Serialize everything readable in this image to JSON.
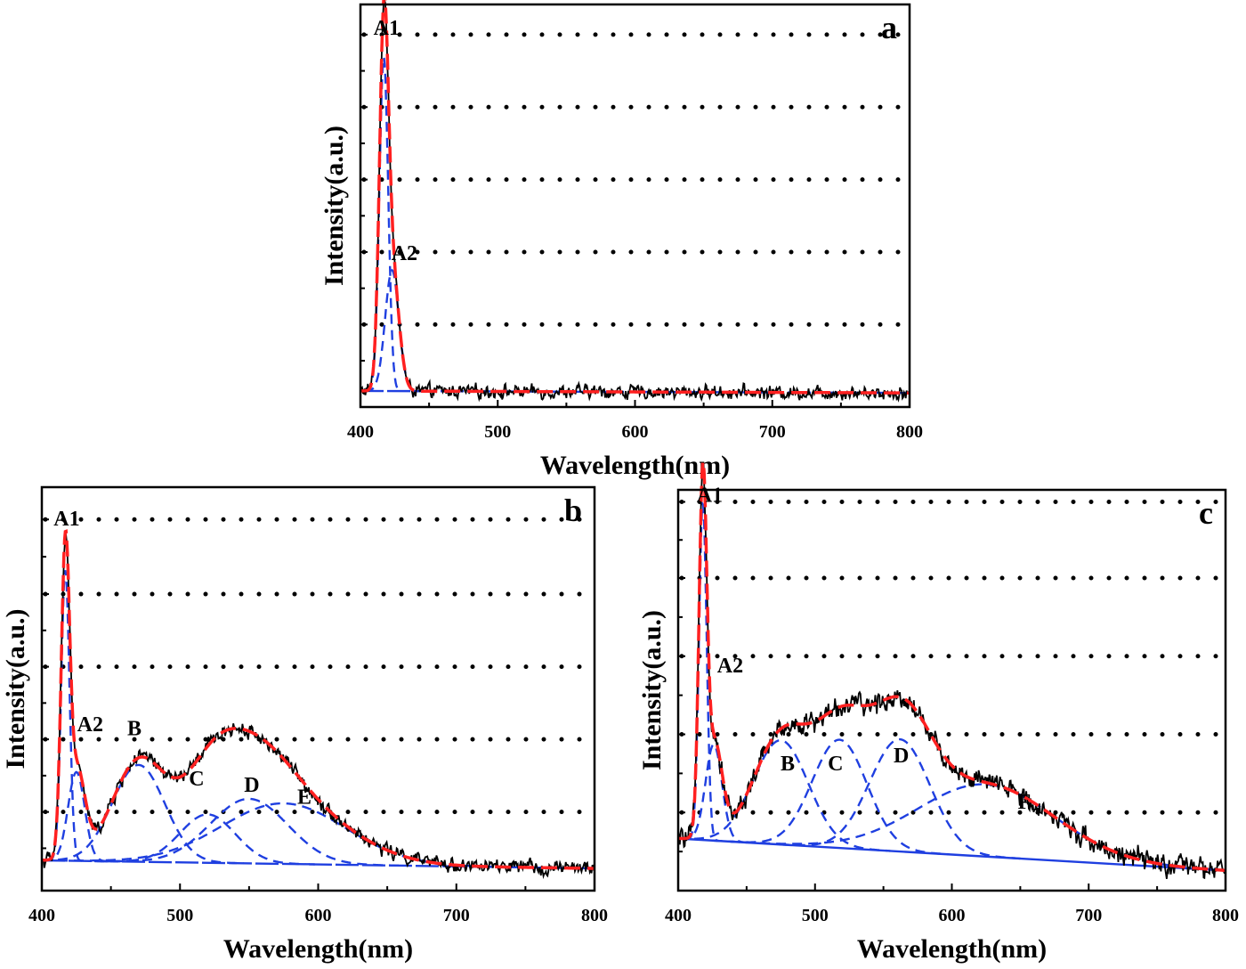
{
  "colors": {
    "measured": "#000000",
    "fit": "#ff2020",
    "components": "#1f3fe0",
    "grid": "#000000"
  },
  "chart_data": [
    {
      "id": "a",
      "type": "line",
      "panel_label": "a",
      "xlabel": "Wavelength(nm)",
      "ylabel": "Intensity(a.u.)",
      "xlim": [
        400,
        800
      ],
      "ylim": [
        0,
        1
      ],
      "xticks": [
        400,
        500,
        600,
        700,
        800
      ],
      "grid_levels": [
        0.205,
        0.385,
        0.565,
        0.745,
        0.925
      ],
      "legend": "none",
      "baseline": [
        0.04,
        0.035
      ],
      "peaks": [
        {
          "label": "A1",
          "center": 417,
          "height": 0.83,
          "width": 3.2
        },
        {
          "label": "A2",
          "center": 423,
          "height": 0.3,
          "width": 5
        }
      ],
      "peak_label_pos": [
        {
          "label": "A1",
          "x": 419,
          "y": 0.925
        },
        {
          "label": "A2",
          "x": 432,
          "y": 0.365
        }
      ],
      "noise": 0.012
    },
    {
      "id": "b",
      "type": "line",
      "panel_label": "b",
      "xlabel": "Wavelength(nm)",
      "ylabel": "Intensity(a.u.)",
      "xlim": [
        400,
        800
      ],
      "ylim": [
        0,
        1
      ],
      "xticks": [
        400,
        500,
        600,
        700,
        800
      ],
      "grid_levels": [
        0.195,
        0.375,
        0.555,
        0.735,
        0.92
      ],
      "legend": "none",
      "baseline": [
        0.075,
        0.055
      ],
      "peaks": [
        {
          "label": "A1",
          "center": 417,
          "height": 0.72,
          "width": 3
        },
        {
          "label": "A2",
          "center": 425,
          "height": 0.22,
          "width": 6
        },
        {
          "label": "B",
          "center": 470,
          "height": 0.24,
          "width": 19
        },
        {
          "label": "C",
          "center": 520,
          "height": 0.12,
          "width": 20
        },
        {
          "label": "D",
          "center": 550,
          "height": 0.16,
          "width": 28
        },
        {
          "label": "E",
          "center": 575,
          "height": 0.15,
          "width": 45
        }
      ],
      "peak_label_pos": [
        {
          "label": "A1",
          "x": 418,
          "y": 0.905
        },
        {
          "label": "A2",
          "x": 435,
          "y": 0.395
        },
        {
          "label": "B",
          "x": 467,
          "y": 0.385
        },
        {
          "label": "C",
          "x": 512,
          "y": 0.26
        },
        {
          "label": "D",
          "x": 552,
          "y": 0.245
        },
        {
          "label": "E",
          "x": 590,
          "y": 0.215
        }
      ],
      "noise": 0.013
    },
    {
      "id": "c",
      "type": "line",
      "panel_label": "c",
      "xlabel": "Wavelength(nm)",
      "ylabel": "Intensity(a.u.)",
      "xlim": [
        400,
        800
      ],
      "ylim": [
        0,
        1
      ],
      "xticks": [
        400,
        500,
        600,
        700,
        800
      ],
      "grid_levels": [
        0.195,
        0.39,
        0.585,
        0.78,
        0.97
      ],
      "legend": "none",
      "baseline": [
        0.13,
        0.05
      ],
      "peaks": [
        {
          "label": "A1",
          "center": 418,
          "height": 0.84,
          "width": 2.8
        },
        {
          "label": "A2",
          "center": 426,
          "height": 0.24,
          "width": 6
        },
        {
          "label": "B",
          "center": 475,
          "height": 0.26,
          "width": 20
        },
        {
          "label": "C",
          "center": 518,
          "height": 0.27,
          "width": 20
        },
        {
          "label": "D",
          "center": 562,
          "height": 0.28,
          "width": 22
        },
        {
          "label": "F",
          "center": 625,
          "height": 0.18,
          "width": 50
        }
      ],
      "peak_label_pos": [
        {
          "label": "A1",
          "x": 423,
          "y": 0.97
        },
        {
          "label": "A2",
          "x": 438,
          "y": 0.545
        },
        {
          "label": "B",
          "x": 480,
          "y": 0.3
        },
        {
          "label": "C",
          "x": 515,
          "y": 0.3
        },
        {
          "label": "D",
          "x": 563,
          "y": 0.32
        },
        {
          "label": "F",
          "x": 653,
          "y": 0.205
        }
      ],
      "noise": 0.02
    }
  ]
}
